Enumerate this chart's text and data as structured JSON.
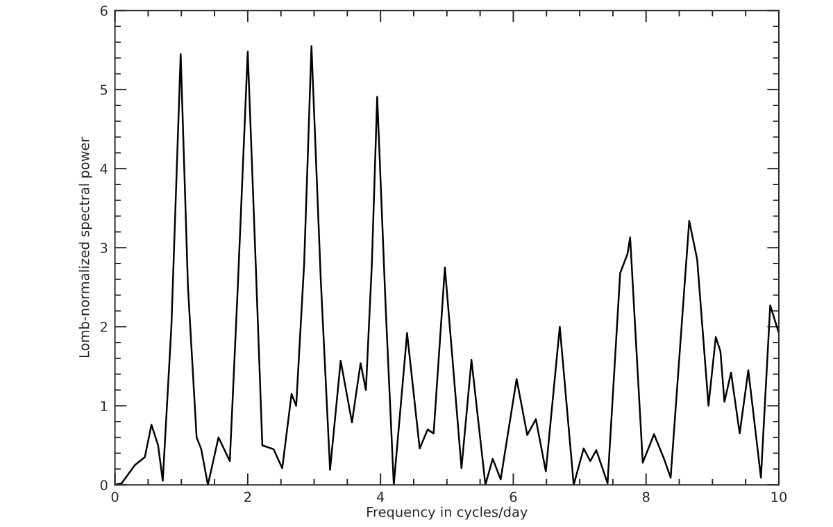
{
  "chart_data": {
    "type": "line",
    "xlabel": "Frequency in cycles/day",
    "ylabel": "Lomb-normalized spectral power",
    "xlim": [
      0,
      10
    ],
    "ylim": [
      0,
      6
    ],
    "xticks": [
      0,
      2,
      4,
      6,
      8,
      10
    ],
    "yticks": [
      0,
      1,
      2,
      3,
      4,
      5,
      6
    ],
    "grid": false,
    "marker": "none",
    "line_style": "solid",
    "series": [
      {
        "color": "#000000",
        "x": [
          0,
          0.1,
          0.3,
          0.45,
          0.55,
          0.65,
          0.72,
          0.85,
          0.99,
          1.1,
          1.23,
          1.3,
          1.4,
          1.56,
          1.73,
          1.85,
          2.0,
          2.12,
          2.22,
          2.39,
          2.52,
          2.66,
          2.73,
          2.85,
          2.96,
          3.1,
          3.24,
          3.4,
          3.57,
          3.7,
          3.78,
          3.87,
          3.95,
          4.08,
          4.2,
          4.4,
          4.59,
          4.71,
          4.8,
          4.97,
          5.22,
          5.37,
          5.58,
          5.69,
          5.81,
          6.05,
          6.21,
          6.34,
          6.49,
          6.7,
          6.91,
          7.06,
          7.16,
          7.25,
          7.42,
          7.61,
          7.72,
          7.76,
          7.95,
          8.12,
          8.27,
          8.37,
          8.65,
          8.77,
          8.94,
          9.05,
          9.12,
          9.18,
          9.28,
          9.41,
          9.54,
          9.73,
          9.87,
          10
        ],
        "values": [
          0,
          0.02,
          0.25,
          0.35,
          0.76,
          0.5,
          0.05,
          2.0,
          5.45,
          2.5,
          0.6,
          0.45,
          0,
          0.6,
          0.3,
          2.5,
          5.48,
          2.8,
          0.5,
          0.45,
          0.21,
          1.15,
          1.0,
          2.8,
          5.55,
          2.6,
          0.19,
          1.57,
          0.79,
          1.54,
          1.2,
          2.8,
          4.91,
          2.2,
          0,
          1.92,
          0.46,
          0.7,
          0.65,
          2.75,
          0.21,
          1.58,
          0,
          0.33,
          0.07,
          1.34,
          0.63,
          0.83,
          0.17,
          2.0,
          0,
          0.46,
          0.3,
          0.44,
          0.02,
          2.68,
          2.92,
          3.13,
          0.28,
          0.64,
          0.33,
          0.09,
          3.34,
          2.85,
          1.0,
          1.87,
          1.69,
          1.05,
          1.42,
          0.65,
          1.45,
          0.09,
          2.27,
          1.92
        ]
      }
    ]
  }
}
